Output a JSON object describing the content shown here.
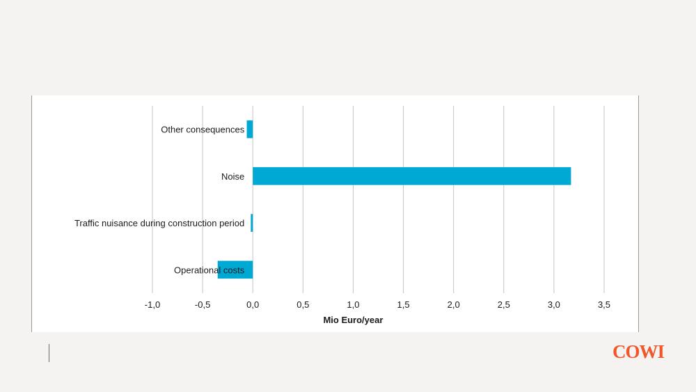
{
  "colors": {
    "bar": "#00a9d4",
    "grid": "#c4c4c4",
    "brand": "#f0572a"
  },
  "brand": {
    "logo_text": "COWI"
  },
  "chart_data": {
    "type": "bar",
    "orientation": "horizontal",
    "categories": [
      "Other consequences",
      "Noise",
      "Traffic nuisance during construction period",
      "Operational costs"
    ],
    "values": [
      -0.06,
      3.17,
      -0.02,
      -0.35
    ],
    "xlabel": "Mio Euro/year",
    "ylabel": "",
    "title": "",
    "xlim": [
      -1.0,
      3.5
    ],
    "xticks": [
      -1.0,
      -0.5,
      0.0,
      0.5,
      1.0,
      1.5,
      2.0,
      2.5,
      3.0,
      3.5
    ],
    "xtick_labels": [
      "-1,0",
      "-0,5",
      "0,0",
      "0,5",
      "1,0",
      "1,5",
      "2,0",
      "2,5",
      "3,0",
      "3,5"
    ],
    "grid": "vertical",
    "legend": "none"
  }
}
